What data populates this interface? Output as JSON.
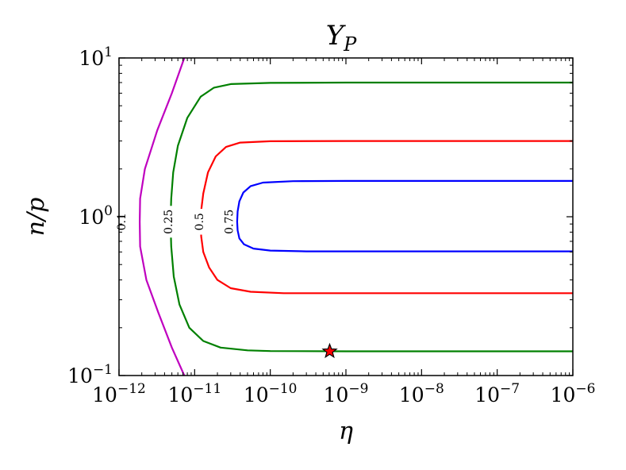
{
  "chart_data": {
    "type": "line",
    "title": "Y_P",
    "xlabel": "η",
    "ylabel": "n/p",
    "x_scale": "log",
    "y_scale": "log",
    "xlim": [
      1e-12,
      1e-06
    ],
    "ylim": [
      0.1,
      10
    ],
    "x_ticks": [
      {
        "value": 1e-12,
        "exp": "−12"
      },
      {
        "value": 1e-11,
        "exp": "−11"
      },
      {
        "value": 1e-10,
        "exp": "−10"
      },
      {
        "value": 1e-09,
        "exp": "−9"
      },
      {
        "value": 1e-08,
        "exp": "−8"
      },
      {
        "value": 1e-07,
        "exp": "−7"
      },
      {
        "value": 1e-06,
        "exp": "−6"
      }
    ],
    "y_ticks": [
      {
        "value": 0.1,
        "exp": "−1"
      },
      {
        "value": 1,
        "exp": "0"
      },
      {
        "value": 10,
        "exp": "1"
      }
    ],
    "tick_base": "10",
    "grid": false,
    "series": [
      {
        "color": "#bf00bf",
        "label": "0.1",
        "label_at": [
          1.1e-12,
          0.93
        ],
        "points": [
          [
            7.3e-12,
            10
          ],
          [
            5e-12,
            6.0
          ],
          [
            3.2e-12,
            3.5
          ],
          [
            2.2e-12,
            2.0
          ],
          [
            1.9e-12,
            1.3
          ],
          [
            1.88e-12,
            0.93
          ],
          [
            1.9e-12,
            0.65
          ],
          [
            2.3e-12,
            0.4
          ],
          [
            3.3e-12,
            0.25
          ],
          [
            5e-12,
            0.15
          ],
          [
            7.3e-12,
            0.1
          ]
        ]
      },
      {
        "color": "#008000",
        "label": "0.25",
        "label_at": [
          4.6e-12,
          0.93
        ],
        "points": [
          [
            1e-06,
            7.0
          ],
          [
            1e-09,
            7.0
          ],
          [
            1e-10,
            6.97
          ],
          [
            3e-11,
            6.85
          ],
          [
            1.8e-11,
            6.5
          ],
          [
            1.2e-11,
            5.7
          ],
          [
            8e-12,
            4.2
          ],
          [
            6e-12,
            2.8
          ],
          [
            5.2e-12,
            1.9
          ],
          [
            4.9e-12,
            1.3
          ],
          [
            4.8e-12,
            0.93
          ],
          [
            4.9e-12,
            0.65
          ],
          [
            5.3e-12,
            0.42
          ],
          [
            6.3e-12,
            0.28
          ],
          [
            8.5e-12,
            0.2
          ],
          [
            1.3e-11,
            0.165
          ],
          [
            2.2e-11,
            0.15
          ],
          [
            5e-11,
            0.144
          ],
          [
            1e-10,
            0.1425
          ],
          [
            1e-09,
            0.142
          ],
          [
            1e-06,
            0.142
          ]
        ]
      },
      {
        "color": "#ff0000",
        "label": "0.5",
        "label_at": [
          1.18e-11,
          0.93
        ],
        "points": [
          [
            1e-06,
            3.0
          ],
          [
            1e-09,
            3.0
          ],
          [
            1e-10,
            2.99
          ],
          [
            4e-11,
            2.93
          ],
          [
            2.6e-11,
            2.75
          ],
          [
            1.9e-11,
            2.4
          ],
          [
            1.5e-11,
            1.9
          ],
          [
            1.3e-11,
            1.4
          ],
          [
            1.22e-11,
            1.1
          ],
          [
            1.2e-11,
            0.93
          ],
          [
            1.22e-11,
            0.75
          ],
          [
            1.3e-11,
            0.6
          ],
          [
            1.55e-11,
            0.48
          ],
          [
            2e-11,
            0.4
          ],
          [
            3e-11,
            0.355
          ],
          [
            5.5e-11,
            0.337
          ],
          [
            1.5e-10,
            0.33
          ],
          [
            1e-09,
            0.33
          ],
          [
            1e-06,
            0.33
          ]
        ]
      },
      {
        "color": "#0000ff",
        "label": "0.75",
        "label_at": [
          2.9e-11,
          0.93
        ],
        "points": [
          [
            1e-06,
            1.68
          ],
          [
            1e-09,
            1.68
          ],
          [
            2e-10,
            1.675
          ],
          [
            8e-11,
            1.64
          ],
          [
            5.5e-11,
            1.56
          ],
          [
            4.4e-11,
            1.42
          ],
          [
            3.9e-11,
            1.25
          ],
          [
            3.7e-11,
            1.08
          ],
          [
            3.65e-11,
            0.93
          ],
          [
            3.7e-11,
            0.82
          ],
          [
            3.9e-11,
            0.73
          ],
          [
            4.5e-11,
            0.67
          ],
          [
            6e-11,
            0.63
          ],
          [
            1e-10,
            0.612
          ],
          [
            3e-10,
            0.605
          ],
          [
            1e-09,
            0.605
          ],
          [
            1e-06,
            0.605
          ]
        ]
      }
    ],
    "marker": {
      "x": 6.1e-10,
      "y": 0.142,
      "shape": "star",
      "color": "#ff0000"
    }
  }
}
